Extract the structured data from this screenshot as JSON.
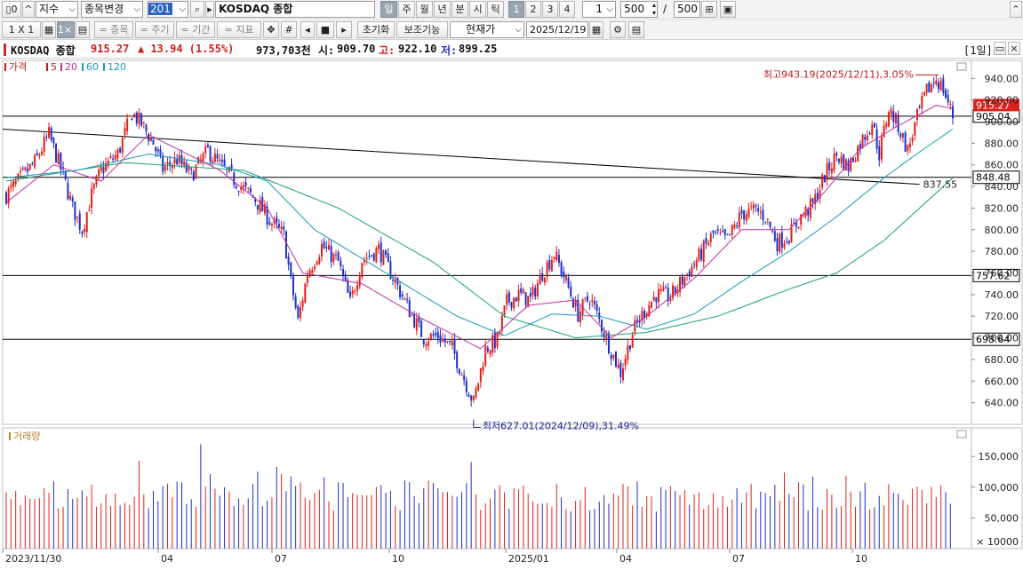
{
  "toolbar1": {
    "btn_panel": "▯0",
    "btn_up": "^",
    "category": "지수",
    "change_stock": "종목변경",
    "code": "201",
    "name": "KOSDAQ 종합",
    "periods": [
      "일",
      "주",
      "월",
      "년",
      "분",
      "시",
      "틱"
    ],
    "active_period": "일",
    "nums": [
      "1",
      "2",
      "3",
      "4"
    ],
    "active_num": "1",
    "interval": "1",
    "count": "500",
    "slash": "/",
    "count_total": "500"
  },
  "toolbar2": {
    "layout": [
      "1 X 1",
      "▦",
      "1×1",
      "▤"
    ],
    "stock_btn": "= 종목",
    "period_btn": "= 주기",
    "range_btn": "= 기간",
    "indicator_btn": "= 지표",
    "reset": "초기화",
    "aux": "보조기능",
    "price_mode": "현재가",
    "date": "2025/12/19"
  },
  "infobar": {
    "name": "KOSDAQ 종합",
    "price": "915.27",
    "change": "▲ 13.94 (1.55%)",
    "volume": "973,703천",
    "open_label": "시:",
    "open": "909.70",
    "high_label": "고:",
    "high": "922.10",
    "low_label": "저:",
    "low": "899.25",
    "period_tag": "[1일]"
  },
  "legend": {
    "price": "가격",
    "ma5": "5",
    "ma20": "20",
    "ma60": "60",
    "ma120": "120",
    "volume": "거래량"
  },
  "colors": {
    "up": "#e0201c",
    "down": "#1f2fc8",
    "ma5": "#6a2a18",
    "ma20": "#c030a0",
    "ma60": "#1a9ab8",
    "ma120": "#1aa070",
    "trendline": "#000000"
  },
  "annotations": {
    "high": "최고943.19(2025/12/11),3.05%",
    "low": "최저627.01(2024/12/09),31.49%",
    "line_label": "837.55"
  },
  "chart_data": [
    {
      "type": "candlestick",
      "price_axis_ticks": [
        640,
        660,
        680,
        700,
        720,
        740,
        760,
        780,
        800,
        820,
        840,
        860,
        880,
        900,
        920,
        940
      ],
      "price_axis_labels": [
        "640.00",
        "660.00",
        "680.00",
        "700.00",
        "720.00",
        "740.00",
        "760.00",
        "780.00",
        "800.00",
        "820.00",
        "840.00",
        "860.00",
        "880.00",
        "900.00",
        "920.00",
        "940.00"
      ],
      "current_price_tag": "915.27",
      "horizontal_lines": [
        905.04,
        848.48,
        757.62,
        698.64
      ],
      "horizontal_line_labels": [
        "905.04",
        "848.48",
        "757.62",
        "698.64"
      ],
      "x_labels": [
        "2023/11/30",
        "04",
        "07",
        "10",
        "2025/01",
        "04",
        "07",
        "10"
      ],
      "high": 943.19,
      "low": 627.01,
      "ylim": [
        620,
        955
      ],
      "close_path": [
        [
          0,
          832
        ],
        [
          5,
          845
        ],
        [
          12,
          862
        ],
        [
          18,
          888
        ],
        [
          24,
          850
        ],
        [
          28,
          820
        ],
        [
          32,
          800
        ],
        [
          36,
          832
        ],
        [
          40,
          855
        ],
        [
          47,
          870
        ],
        [
          53,
          908
        ],
        [
          57,
          898
        ],
        [
          62,
          880
        ],
        [
          66,
          856
        ],
        [
          72,
          865
        ],
        [
          78,
          850
        ],
        [
          85,
          873
        ],
        [
          92,
          855
        ],
        [
          98,
          842
        ],
        [
          105,
          828
        ],
        [
          112,
          806
        ],
        [
          117,
          795
        ],
        [
          120,
          752
        ],
        [
          123,
          715
        ],
        [
          127,
          760
        ],
        [
          133,
          785
        ],
        [
          140,
          770
        ],
        [
          145,
          732
        ],
        [
          150,
          772
        ],
        [
          157,
          782
        ],
        [
          164,
          752
        ],
        [
          170,
          725
        ],
        [
          176,
          700
        ],
        [
          182,
          702
        ],
        [
          188,
          690
        ],
        [
          192,
          668
        ],
        [
          197,
          640
        ],
        [
          202,
          690
        ],
        [
          207,
          698
        ],
        [
          211,
          733
        ],
        [
          216,
          740
        ],
        [
          221,
          735
        ],
        [
          226,
          760
        ],
        [
          231,
          778
        ],
        [
          236,
          752
        ],
        [
          241,
          722
        ],
        [
          246,
          738
        ],
        [
          250,
          716
        ],
        [
          255,
          688
        ],
        [
          259,
          668
        ],
        [
          264,
          705
        ],
        [
          269,
          725
        ],
        [
          274,
          740
        ],
        [
          280,
          738
        ],
        [
          286,
          756
        ],
        [
          292,
          775
        ],
        [
          298,
          796
        ],
        [
          304,
          790
        ],
        [
          310,
          815
        ],
        [
          316,
          818
        ],
        [
          320,
          812
        ],
        [
          325,
          788
        ],
        [
          330,
          795
        ],
        [
          335,
          812
        ],
        [
          340,
          823
        ],
        [
          345,
          850
        ],
        [
          350,
          869
        ],
        [
          355,
          858
        ],
        [
          360,
          880
        ],
        [
          365,
          900
        ],
        [
          368,
          870
        ],
        [
          372,
          912
        ],
        [
          376,
          896
        ],
        [
          380,
          873
        ],
        [
          384,
          904
        ],
        [
          388,
          928
        ],
        [
          392,
          940
        ],
        [
          395,
          930
        ],
        [
          399,
          905
        ]
      ],
      "ma_paths": {
        "ma20": [
          [
            0,
            825
          ],
          [
            20,
            860
          ],
          [
            40,
            845
          ],
          [
            60,
            888
          ],
          [
            90,
            855
          ],
          [
            110,
            820
          ],
          [
            125,
            760
          ],
          [
            150,
            750
          ],
          [
            175,
            718
          ],
          [
            200,
            690
          ],
          [
            220,
            730
          ],
          [
            240,
            735
          ],
          [
            255,
            700
          ],
          [
            270,
            720
          ],
          [
            290,
            755
          ],
          [
            310,
            800
          ],
          [
            330,
            800
          ],
          [
            345,
            835
          ],
          [
            360,
            875
          ],
          [
            375,
            895
          ],
          [
            392,
            915
          ],
          [
            399,
            912
          ]
        ],
        "ma60": [
          [
            0,
            848
          ],
          [
            30,
            855
          ],
          [
            60,
            870
          ],
          [
            90,
            860
          ],
          [
            110,
            845
          ],
          [
            130,
            800
          ],
          [
            160,
            760
          ],
          [
            190,
            720
          ],
          [
            210,
            702
          ],
          [
            230,
            722
          ],
          [
            250,
            720
          ],
          [
            270,
            708
          ],
          [
            290,
            722
          ],
          [
            310,
            752
          ],
          [
            330,
            780
          ],
          [
            350,
            812
          ],
          [
            370,
            848
          ],
          [
            385,
            872
          ],
          [
            399,
            893
          ]
        ],
        "ma120": [
          [
            0,
            845
          ],
          [
            50,
            862
          ],
          [
            100,
            855
          ],
          [
            140,
            820
          ],
          [
            180,
            770
          ],
          [
            210,
            720
          ],
          [
            240,
            700
          ],
          [
            270,
            705
          ],
          [
            300,
            720
          ],
          [
            330,
            745
          ],
          [
            350,
            760
          ],
          [
            370,
            790
          ],
          [
            399,
            848
          ]
        ]
      }
    },
    {
      "type": "bar",
      "name": "거래량",
      "unit_label": "× 10000",
      "y_axis_labels": [
        "50,000",
        "100,000",
        "150,000"
      ],
      "y_ticks": [
        50000,
        100000,
        150000
      ],
      "ylim": [
        0,
        185000
      ],
      "typical_range": [
        60000,
        110000
      ],
      "peak": 170000
    }
  ]
}
